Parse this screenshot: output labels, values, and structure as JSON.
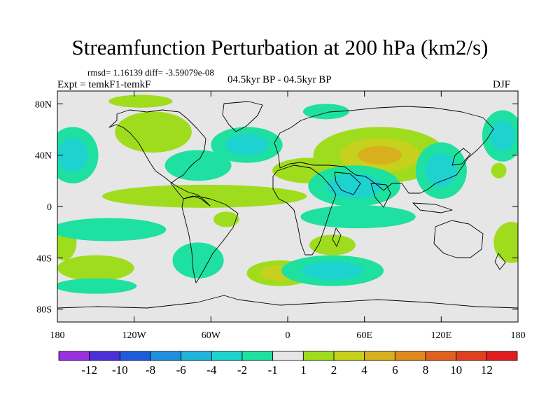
{
  "chart_data": {
    "type": "heatmap",
    "title": "Streamfunction Perturbation at 200 hPa (km2/s)",
    "stats_label": "rmsd= 1.16139 diff= -3.59079e-08",
    "experiment_label": "Expt = temkF1-temkF",
    "period_label": "04.5kyr BP - 04.5kyr BP",
    "season_label": "DJF",
    "x_ticks": [
      {
        "lon": -180,
        "label": "180"
      },
      {
        "lon": -120,
        "label": "120W"
      },
      {
        "lon": -60,
        "label": "60W"
      },
      {
        "lon": 0,
        "label": "0"
      },
      {
        "lon": 60,
        "label": "60E"
      },
      {
        "lon": 120,
        "label": "120E"
      },
      {
        "lon": 180,
        "label": "180"
      }
    ],
    "y_ticks": [
      {
        "lat": 80,
        "label": "80N"
      },
      {
        "lat": 40,
        "label": "40N"
      },
      {
        "lat": 0,
        "label": "0"
      },
      {
        "lat": -40,
        "label": "40S"
      },
      {
        "lat": -80,
        "label": "80S"
      }
    ],
    "xlim": [
      -180,
      180
    ],
    "ylim": [
      -90,
      90
    ],
    "colorbar": {
      "levels": [
        "-12",
        "-10",
        "-8",
        "-6",
        "-4",
        "-2",
        "-1",
        "1",
        "2",
        "4",
        "6",
        "8",
        "10",
        "12"
      ],
      "colors": [
        "#9a30e0",
        "#4a30d8",
        "#1e5adc",
        "#1e90e0",
        "#1eb4dc",
        "#1ed2d0",
        "#1ee0a0",
        "#e6e6e6",
        "#a0dc1e",
        "#c8d01e",
        "#d8b01e",
        "#e08a1e",
        "#e0621e",
        "#e0401e",
        "#e01e1e"
      ]
    },
    "anomalies": [
      {
        "lon": -168,
        "lat": 40,
        "rlon": 20,
        "rlat": 22,
        "value": -3.5
      },
      {
        "lon": -105,
        "lat": 58,
        "rlon": 30,
        "rlat": 16,
        "value": 1.5
      },
      {
        "lon": -115,
        "lat": 82,
        "rlon": 25,
        "rlat": 5,
        "value": 1.5
      },
      {
        "lon": -70,
        "lat": 32,
        "rlon": 26,
        "rlat": 12,
        "value": -2.5
      },
      {
        "lon": -32,
        "lat": 48,
        "rlon": 28,
        "rlat": 14,
        "value": -3
      },
      {
        "lon": -65,
        "lat": 8,
        "rlon": 80,
        "rlat": 9,
        "value": 1.5
      },
      {
        "lon": 18,
        "lat": 28,
        "rlon": 30,
        "rlat": 10,
        "value": 1.5
      },
      {
        "lon": 30,
        "lat": 74,
        "rlon": 18,
        "rlat": 6,
        "value": -1.5
      },
      {
        "lon": 72,
        "lat": 40,
        "rlon": 52,
        "rlat": 22,
        "value": 4
      },
      {
        "lon": 52,
        "lat": 16,
        "rlon": 36,
        "rlat": 16,
        "value": -3.5
      },
      {
        "lon": 55,
        "lat": -8,
        "rlon": 45,
        "rlat": 9,
        "value": -1.5
      },
      {
        "lon": 120,
        "lat": 28,
        "rlon": 20,
        "rlat": 22,
        "value": -4
      },
      {
        "lon": 168,
        "lat": 55,
        "rlon": 16,
        "rlat": 20,
        "value": -3
      },
      {
        "lon": 165,
        "lat": 28,
        "rlon": 6,
        "rlat": 6,
        "value": 1.5
      },
      {
        "lon": 175,
        "lat": -28,
        "rlon": 14,
        "rlat": 16,
        "value": 2.5
      },
      {
        "lon": -175,
        "lat": -28,
        "rlon": 10,
        "rlat": 14,
        "value": 2.5
      },
      {
        "lon": -140,
        "lat": -18,
        "rlon": 45,
        "rlat": 9,
        "value": -1.5
      },
      {
        "lon": -150,
        "lat": -48,
        "rlon": 30,
        "rlat": 10,
        "value": 2.5
      },
      {
        "lon": -150,
        "lat": -62,
        "rlon": 32,
        "rlat": 6,
        "value": -1.5
      },
      {
        "lon": -70,
        "lat": -42,
        "rlon": 20,
        "rlat": 14,
        "value": -2
      },
      {
        "lon": -48,
        "lat": -10,
        "rlon": 10,
        "rlat": 6,
        "value": 1.5
      },
      {
        "lon": -6,
        "lat": -52,
        "rlon": 26,
        "rlat": 10,
        "value": 3
      },
      {
        "lon": 35,
        "lat": -50,
        "rlon": 40,
        "rlat": 12,
        "value": -3
      },
      {
        "lon": 35,
        "lat": -30,
        "rlon": 18,
        "rlat": 8,
        "value": 2
      }
    ]
  }
}
